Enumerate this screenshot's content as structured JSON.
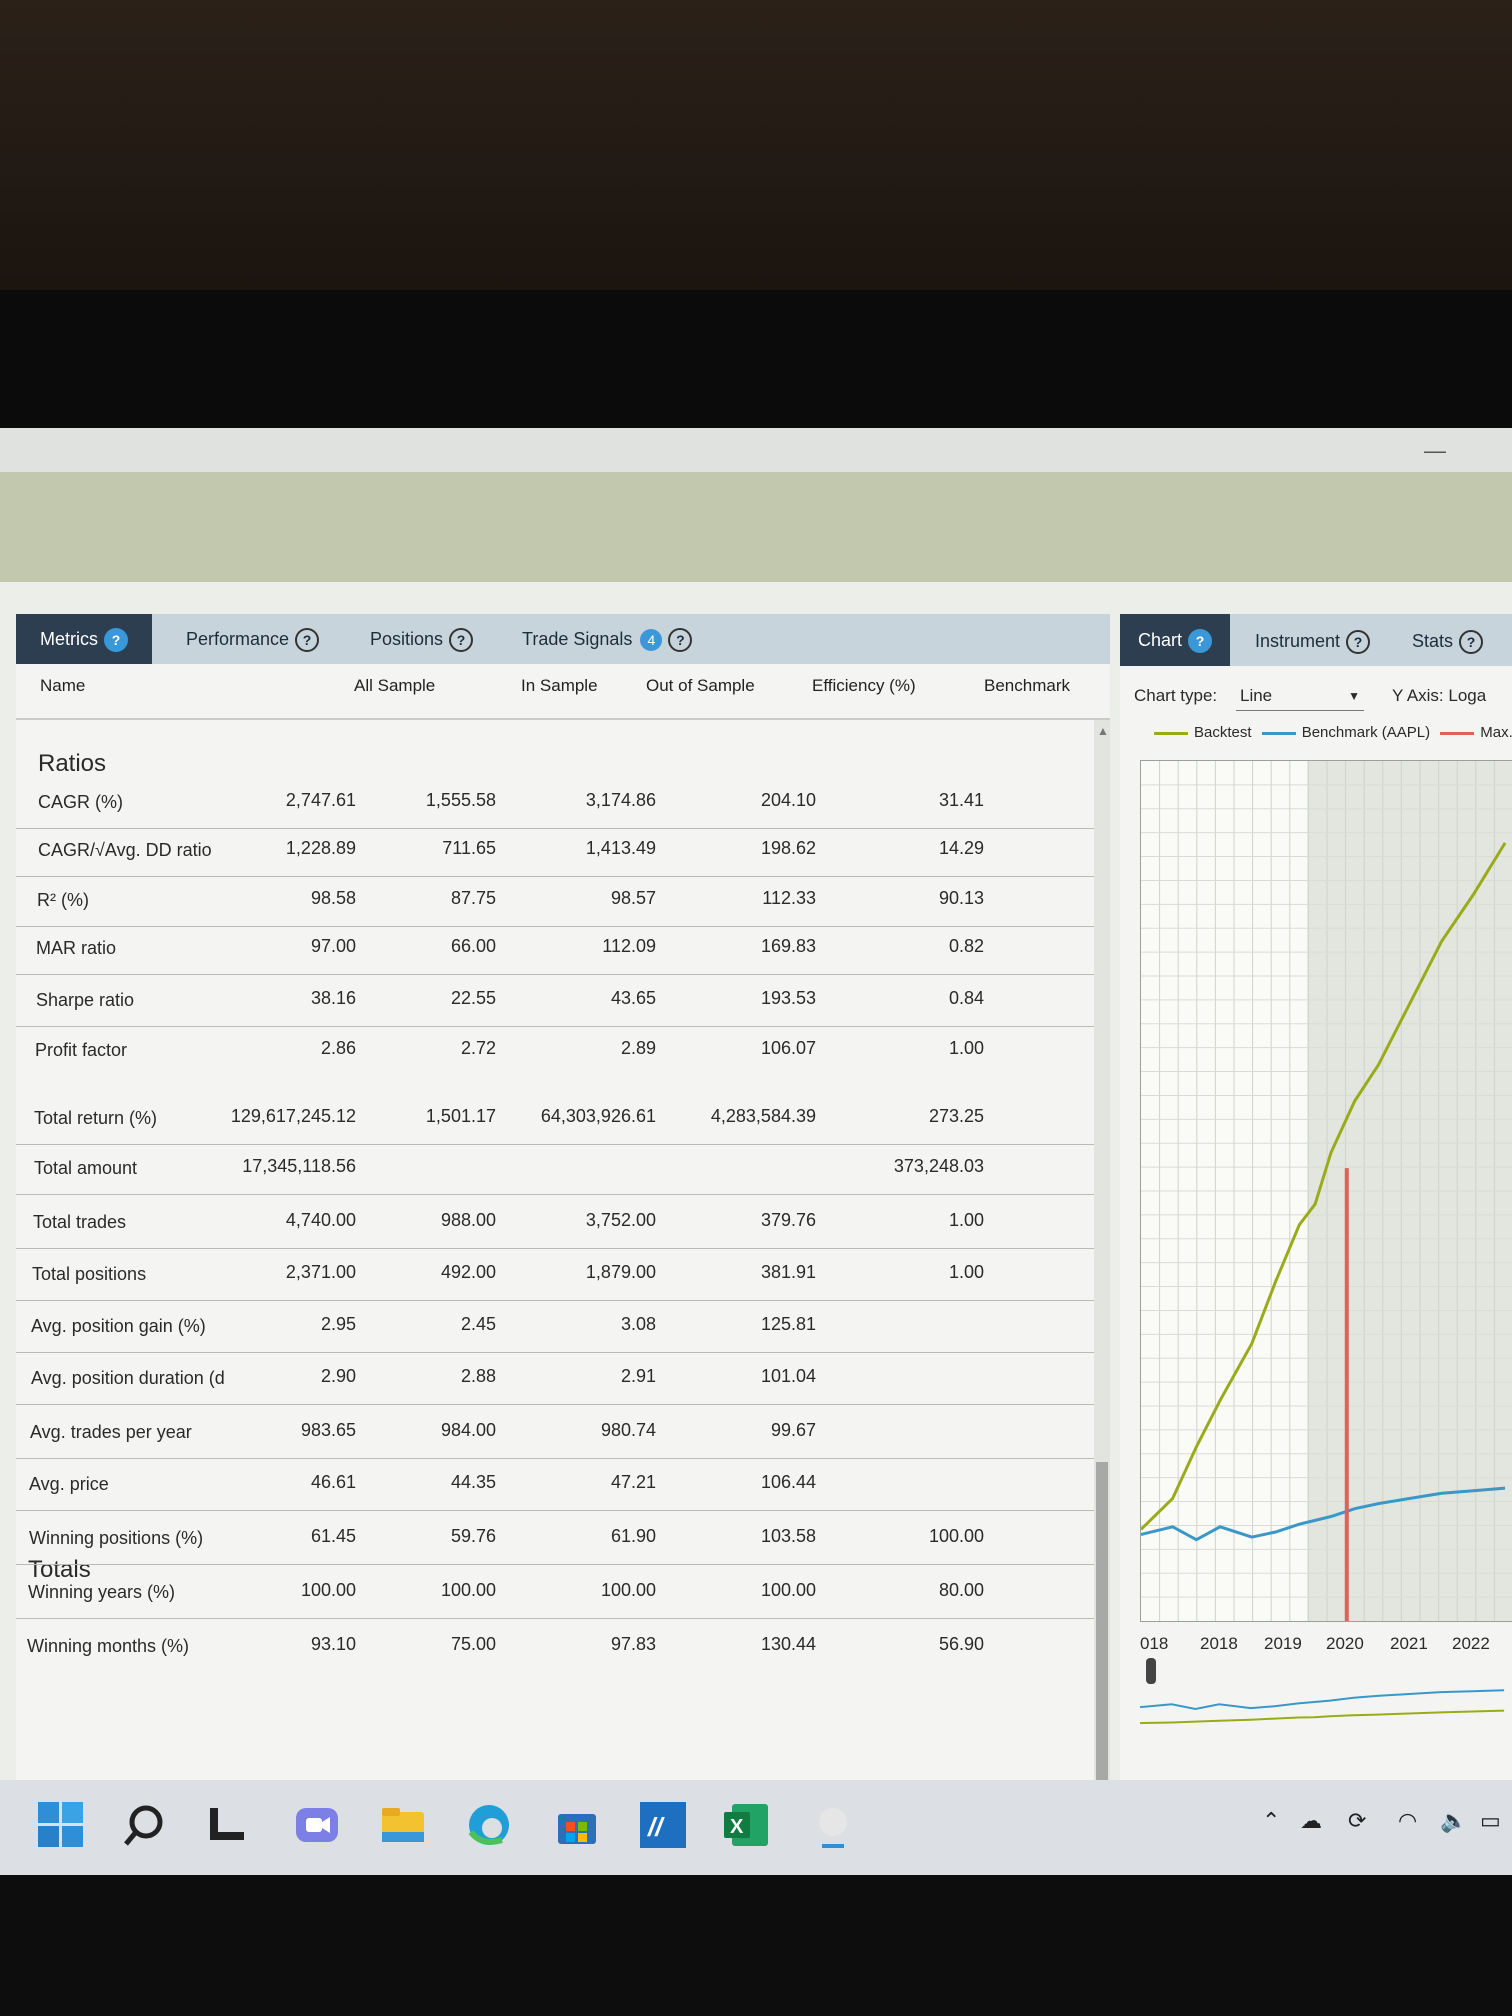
{
  "tabs": [
    {
      "label": "Metrics"
    },
    {
      "label": "Performance"
    },
    {
      "label": "Positions"
    },
    {
      "label": "Trade Signals",
      "badge": "4"
    }
  ],
  "columns": [
    "Name",
    "All Sample",
    "In Sample",
    "Out of Sample",
    "Efficiency (%)",
    "Benchmark"
  ],
  "sections": {
    "ratios_title": "Ratios",
    "totals_title": "Totals"
  },
  "rows": [
    {
      "name": "CAGR (%)",
      "all": "2,747.61",
      "in": "1,555.58",
      "out": "3,174.86",
      "eff": "204.10",
      "bench": "31.41"
    },
    {
      "name": "CAGR/√Avg. DD ratio",
      "all": "1,228.89",
      "in": "711.65",
      "out": "1,413.49",
      "eff": "198.62",
      "bench": "14.29"
    },
    {
      "name": "R² (%)",
      "all": "98.58",
      "in": "87.75",
      "out": "98.57",
      "eff": "112.33",
      "bench": "90.13"
    },
    {
      "name": "MAR ratio",
      "all": "97.00",
      "in": "66.00",
      "out": "112.09",
      "eff": "169.83",
      "bench": "0.82"
    },
    {
      "name": "Sharpe ratio",
      "all": "38.16",
      "in": "22.55",
      "out": "43.65",
      "eff": "193.53",
      "bench": "0.84"
    },
    {
      "name": "Profit factor",
      "all": "2.86",
      "in": "2.72",
      "out": "2.89",
      "eff": "106.07",
      "bench": "1.00"
    },
    {
      "name": "Total return (%)",
      "all": "129,617,245.12",
      "in": "1,501.17",
      "out": "64,303,926.61",
      "eff": "4,283,584.39",
      "bench": "273.25"
    },
    {
      "name": "Total amount",
      "all": "17,345,118.56",
      "in": "",
      "out": "",
      "eff": "",
      "bench": "373,248.03"
    },
    {
      "name": "Total trades",
      "all": "4,740.00",
      "in": "988.00",
      "out": "3,752.00",
      "eff": "379.76",
      "bench": "1.00"
    },
    {
      "name": "Total positions",
      "all": "2,371.00",
      "in": "492.00",
      "out": "1,879.00",
      "eff": "381.91",
      "bench": "1.00"
    },
    {
      "name": "Avg. position gain (%)",
      "all": "2.95",
      "in": "2.45",
      "out": "3.08",
      "eff": "125.81",
      "bench": ""
    },
    {
      "name": "Avg. position duration (d",
      "all": "2.90",
      "in": "2.88",
      "out": "2.91",
      "eff": "101.04",
      "bench": ""
    },
    {
      "name": "Avg. trades per year",
      "all": "983.65",
      "in": "984.00",
      "out": "980.74",
      "eff": "99.67",
      "bench": ""
    },
    {
      "name": "Avg. price",
      "all": "46.61",
      "in": "44.35",
      "out": "47.21",
      "eff": "106.44",
      "bench": ""
    },
    {
      "name": "Winning positions (%)",
      "all": "61.45",
      "in": "59.76",
      "out": "61.90",
      "eff": "103.58",
      "bench": "100.00"
    },
    {
      "name": "Winning years (%)",
      "all": "100.00",
      "in": "100.00",
      "out": "100.00",
      "eff": "100.00",
      "bench": "80.00"
    },
    {
      "name": "Winning months (%)",
      "all": "93.10",
      "in": "75.00",
      "out": "97.83",
      "eff": "130.44",
      "bench": "56.90"
    }
  ],
  "right_panel": {
    "tabs": [
      "Chart",
      "Instrument",
      "Stats"
    ],
    "chart_type_label": "Chart type:",
    "chart_type_value": "Line",
    "y_axis_label": "Y Axis:",
    "y_axis_value": "Loga",
    "legend": [
      {
        "name": "Backtest",
        "color": "#9aab1a"
      },
      {
        "name": "Benchmark (AAPL)",
        "color": "#3a98c8"
      },
      {
        "name": "Max.",
        "color": "#e0605a"
      }
    ]
  },
  "chart_data": {
    "type": "line",
    "x_ticks": [
      "018",
      "2018",
      "2019",
      "2020",
      "2021",
      "2022"
    ],
    "series": [
      {
        "name": "Backtest",
        "points": [
          [
            2017.6,
            1.0
          ],
          [
            2018.0,
            1.6
          ],
          [
            2018.3,
            2.6
          ],
          [
            2018.6,
            3.5
          ],
          [
            2019.0,
            4.6
          ],
          [
            2019.3,
            5.8
          ],
          [
            2019.6,
            6.9
          ],
          [
            2019.8,
            7.3
          ],
          [
            2020.0,
            8.3
          ],
          [
            2020.3,
            9.3
          ],
          [
            2020.6,
            10.0
          ],
          [
            2021.0,
            11.2
          ],
          [
            2021.4,
            12.4
          ],
          [
            2021.8,
            13.3
          ],
          [
            2022.2,
            14.3
          ]
        ]
      },
      {
        "name": "Benchmark (AAPL)",
        "points": [
          [
            2017.6,
            0.9
          ],
          [
            2018.0,
            1.05
          ],
          [
            2018.3,
            0.8
          ],
          [
            2018.6,
            1.05
          ],
          [
            2019.0,
            0.85
          ],
          [
            2019.3,
            0.95
          ],
          [
            2019.6,
            1.1
          ],
          [
            2020.0,
            1.25
          ],
          [
            2020.3,
            1.4
          ],
          [
            2020.6,
            1.5
          ],
          [
            2021.0,
            1.6
          ],
          [
            2021.4,
            1.7
          ],
          [
            2021.8,
            1.75
          ],
          [
            2022.2,
            1.8
          ]
        ]
      }
    ],
    "marker_x": 2020.2,
    "out_of_sample_start": 2019.7
  },
  "colors": {
    "tab_active_bg": "#2c3e50",
    "accent": "#3a98d8",
    "backtest": "#9aab1a",
    "benchmark": "#3a98c8",
    "marker": "#e0605a"
  }
}
